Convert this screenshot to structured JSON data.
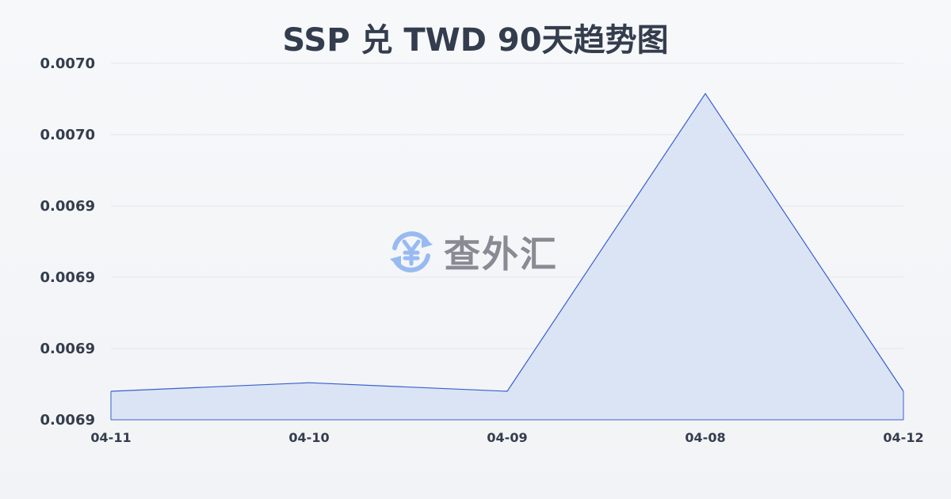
{
  "chart_data": {
    "type": "area",
    "title": "SSP 兑 TWD 90天趋势图",
    "xlabel": "",
    "ylabel": "",
    "categories": [
      "04-11",
      "04-10",
      "04-09",
      "04-08",
      "04-12"
    ],
    "series": [
      {
        "values": [
          0.006905,
          0.0069065,
          0.006905,
          0.0069572,
          0.006905
        ]
      }
    ],
    "ylim": [
      0.0069,
      0.0069625
    ],
    "yticks": [
      0.0069,
      0.0069125,
      0.006925,
      0.0069375,
      0.00695,
      0.0069625
    ],
    "ytick_labels": [
      "0.0069",
      "0.0069",
      "0.0069",
      "0.0069",
      "0.0070",
      "0.0070"
    ],
    "grid": true,
    "line_color": "#3a5fcd",
    "fill_color": "#d6e0f5"
  },
  "watermark": {
    "text": "查外汇",
    "icon": "yen-exchange-icon",
    "icon_color": "#8fb4f2"
  }
}
